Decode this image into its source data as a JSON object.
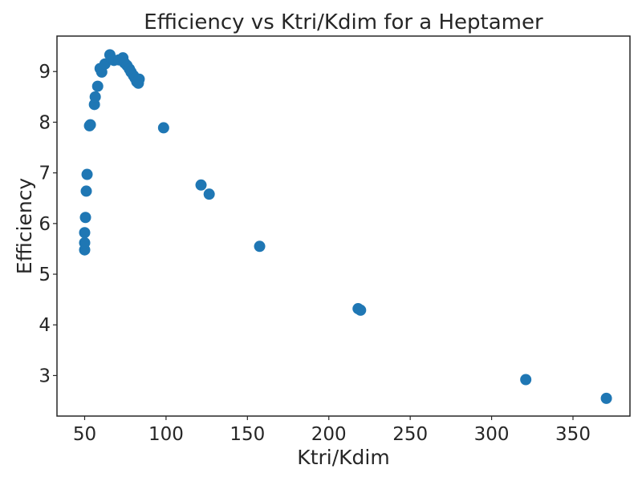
{
  "chart_data": {
    "type": "scatter",
    "title": "Efficiency vs Ktri/Kdim for a Heptamer",
    "xlabel": "Ktri/Kdim",
    "ylabel": "Efficiency",
    "xlim": [
      33,
      385
    ],
    "ylim": [
      2.2,
      9.7
    ],
    "xticks": [
      50,
      100,
      150,
      200,
      250,
      300,
      350
    ],
    "yticks": [
      3,
      4,
      5,
      6,
      7,
      8,
      9
    ],
    "grid": false,
    "legend": "none",
    "marker_color": "#1f77b4",
    "points": [
      {
        "x": 50,
        "y": 5.48
      },
      {
        "x": 50,
        "y": 5.62
      },
      {
        "x": 50,
        "y": 5.82
      },
      {
        "x": 50.5,
        "y": 6.12
      },
      {
        "x": 51,
        "y": 6.64
      },
      {
        "x": 51.5,
        "y": 6.97
      },
      {
        "x": 53,
        "y": 7.93
      },
      {
        "x": 53.5,
        "y": 7.95
      },
      {
        "x": 56,
        "y": 8.35
      },
      {
        "x": 56.5,
        "y": 8.5
      },
      {
        "x": 58,
        "y": 8.71
      },
      {
        "x": 59.5,
        "y": 9.06
      },
      {
        "x": 60.5,
        "y": 8.99
      },
      {
        "x": 62.5,
        "y": 9.15
      },
      {
        "x": 65.5,
        "y": 9.33
      },
      {
        "x": 66.5,
        "y": 9.25
      },
      {
        "x": 68,
        "y": 9.22
      },
      {
        "x": 71,
        "y": 9.23
      },
      {
        "x": 73.5,
        "y": 9.27
      },
      {
        "x": 74.5,
        "y": 9.17
      },
      {
        "x": 76,
        "y": 9.12
      },
      {
        "x": 77.5,
        "y": 9.05
      },
      {
        "x": 78.5,
        "y": 8.99
      },
      {
        "x": 80,
        "y": 8.92
      },
      {
        "x": 81,
        "y": 8.87
      },
      {
        "x": 82,
        "y": 8.8
      },
      {
        "x": 83,
        "y": 8.77
      },
      {
        "x": 83.5,
        "y": 8.85
      },
      {
        "x": 98.5,
        "y": 7.89
      },
      {
        "x": 121.5,
        "y": 6.76
      },
      {
        "x": 126.5,
        "y": 6.58
      },
      {
        "x": 157.5,
        "y": 5.55
      },
      {
        "x": 218,
        "y": 4.32
      },
      {
        "x": 219.5,
        "y": 4.29
      },
      {
        "x": 321,
        "y": 2.92
      },
      {
        "x": 370.5,
        "y": 2.55
      }
    ]
  }
}
